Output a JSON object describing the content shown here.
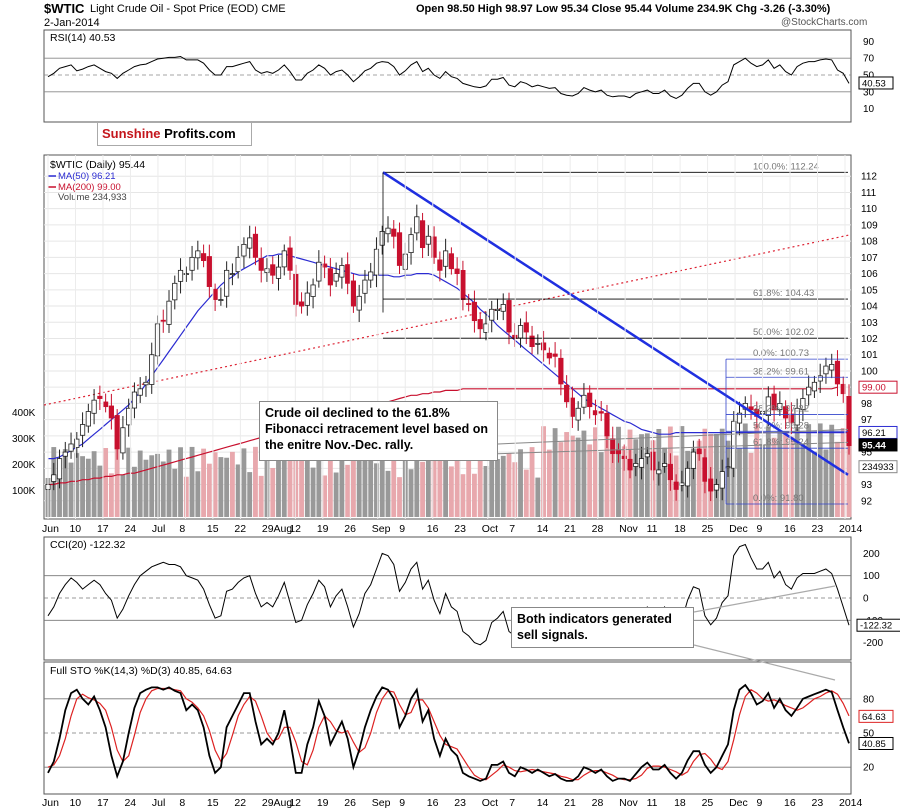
{
  "header": {
    "symbol": "$WTIC",
    "name": "Light Crude Oil - Spot Price (EOD)",
    "exchange": "CME",
    "date": "2-Jan-2014",
    "ohlc": "Open 98.50  High 98.97  Low 95.34  Close 95.44  Volume 234.9K  Chg -3.26 (-3.30%)",
    "copyright": "@StockCharts.com"
  },
  "logo": {
    "part1": "Sunshine",
    "part2": "Profits.com"
  },
  "annotations": {
    "main_note": "Crude oil declined to the 61.8% Fibonacci retracement level based on the enitre Nov.-Dec. rally.",
    "indicator_note": "Both indicators generated sell signals."
  },
  "colors": {
    "up": "#222222",
    "down": "#c8102e",
    "ma50": "#2b2bd1",
    "ma200": "#c8102e",
    "trend_blue": "#1f2fe0",
    "volume_up": "#999999",
    "volume_down": "#e8a8ad",
    "cci_pos": "#4f7a4f",
    "cci_neg": "#8a5a5a",
    "rsi_fill": "#4f7a4f"
  },
  "chart_data": {
    "type": "candlestick",
    "x_labels": [
      "Jun",
      "10",
      "17",
      "24",
      "Jul",
      "8",
      "15",
      "22",
      "29Aug",
      "12",
      "19",
      "26",
      "Sep",
      "9",
      "16",
      "23",
      "Oct",
      "7",
      "14",
      "21",
      "28",
      "Nov",
      "11",
      "18",
      "25",
      "Dec",
      "9",
      "16",
      "23",
      "2014"
    ],
    "main_panel": {
      "title": "$WTIC (Daily) 95.44",
      "legend": [
        "MA(50) 96.21",
        "MA(200) 99.00",
        "Volume 234,933"
      ],
      "ylim": [
        91,
        113
      ],
      "y_ticks": [
        92,
        93,
        94,
        95,
        96,
        97,
        98,
        99,
        100,
        101,
        102,
        103,
        104,
        105,
        106,
        107,
        108,
        109,
        110,
        111,
        112
      ],
      "volume_ticks": [
        "100K",
        "200K",
        "300K",
        "400K"
      ],
      "closes": [
        93.0,
        93.6,
        94.6,
        95.0,
        95.5,
        95.8,
        96.7,
        97.5,
        98.2,
        98.3,
        97.8,
        97.1,
        95.2,
        96.5,
        97.7,
        98.7,
        98.9,
        99.3,
        101.0,
        102.9,
        103.1,
        104.3,
        105.4,
        106.2,
        106.0,
        107.0,
        107.4,
        106.8,
        105.2,
        104.4,
        104.4,
        106.2,
        106.0,
        107.0,
        107.8,
        108.2,
        107.0,
        106.2,
        106.3,
        105.9,
        106.4,
        107.4,
        106.2,
        104.1,
        104.0,
        104.8,
        105.3,
        106.7,
        106.4,
        105.3,
        106.0,
        106.5,
        105.4,
        104.0,
        104.6,
        105.6,
        106.1,
        107.5,
        108.6,
        108.8,
        108.3,
        106.5,
        107.2,
        108.4,
        109.5,
        107.6,
        108.3,
        107.0,
        106.2,
        107.4,
        106.3,
        106.0,
        104.4,
        104.1,
        103.1,
        102.6,
        102.9,
        103.8,
        103.8,
        104.1,
        102.4,
        102.0,
        102.8,
        102.4,
        101.5,
        101.7,
        101.3,
        100.8,
        100.9,
        99.2,
        98.1,
        97.2,
        97.7,
        98.5,
        97.8,
        97.3,
        97.4,
        96.0,
        94.9,
        94.9,
        94.6,
        93.9,
        94.3,
        94.6,
        94.9,
        93.9,
        93.9,
        94.3,
        93.3,
        92.7,
        93.1,
        94.0,
        95.0,
        94.9,
        93.2,
        92.6,
        93.0,
        93.8,
        94.1,
        96.9,
        97.4,
        98.0,
        97.6,
        97.2,
        97.5,
        98.4,
        97.6,
        98.0,
        97.1,
        96.8,
        97.7,
        98.3,
        99.0,
        99.3,
        99.7,
        100.3,
        100.4,
        99.2,
        98.6,
        95.4
      ],
      "ma50": [
        94.6,
        94.6,
        94.7,
        94.9,
        95.1,
        95.3,
        95.5,
        95.8,
        96.1,
        96.4,
        96.7,
        97.0,
        97.3,
        97.6,
        97.9,
        98.3,
        98.7,
        99.2,
        99.7,
        100.2,
        100.7,
        101.2,
        101.7,
        102.2,
        102.7,
        103.2,
        103.7,
        104.1,
        104.5,
        104.9,
        105.3,
        105.6,
        105.8,
        106.1,
        106.3,
        106.5,
        106.7,
        106.9,
        107.1,
        107.1,
        107.2,
        107.2,
        107.1,
        107.0,
        106.9,
        106.8,
        106.7,
        106.6,
        106.5,
        106.4,
        106.3,
        106.2,
        106.1,
        106.0,
        105.9,
        105.9,
        105.9,
        105.9,
        105.9,
        105.9,
        105.8,
        105.8,
        105.9,
        105.9,
        106.0,
        106.0,
        106.0,
        105.9,
        105.7,
        105.5,
        105.3,
        105.1,
        104.8,
        104.5,
        104.2,
        103.8,
        103.5,
        103.2,
        102.8,
        102.5,
        102.2,
        101.9,
        101.6,
        101.3,
        101.0,
        100.7,
        100.4,
        100.1,
        99.8,
        99.5,
        99.2,
        98.9,
        98.6,
        98.3,
        98.1,
        97.9,
        97.7,
        97.5,
        97.3,
        97.1,
        96.9,
        96.8,
        96.6,
        96.4,
        96.3,
        96.2,
        96.1,
        96.1,
        96.1,
        96.2,
        96.2,
        96.2,
        96.2,
        96.2,
        96.2,
        96.2,
        96.2,
        96.2,
        96.2,
        96.2,
        96.2,
        96.2,
        96.2,
        96.2,
        96.2,
        96.2,
        96.2,
        96.2,
        96.2,
        96.2,
        96.2,
        96.2,
        96.2,
        96.2,
        96.2,
        96.2,
        96.2,
        96.2,
        96.2,
        96.2
      ],
      "ma200": [
        93.0,
        93.0,
        93.1,
        93.1,
        93.2,
        93.2,
        93.3,
        93.3,
        93.4,
        93.4,
        93.5,
        93.5,
        93.6,
        93.6,
        93.7,
        93.7,
        93.8,
        93.9,
        94.0,
        94.1,
        94.2,
        94.3,
        94.4,
        94.5,
        94.6,
        94.7,
        94.8,
        94.9,
        95.0,
        95.1,
        95.2,
        95.3,
        95.4,
        95.5,
        95.6,
        95.7,
        95.8,
        95.9,
        96.0,
        96.1,
        96.2,
        96.3,
        96.4,
        96.5,
        96.6,
        96.7,
        96.8,
        96.9,
        97.0,
        97.1,
        97.2,
        97.3,
        97.4,
        97.5,
        97.6,
        97.7,
        97.8,
        97.9,
        98.0,
        98.1,
        98.2,
        98.3,
        98.4,
        98.5,
        98.5,
        98.6,
        98.6,
        98.7,
        98.7,
        98.8,
        98.8,
        98.8,
        98.9,
        98.9,
        98.9,
        98.9,
        98.9,
        98.9,
        98.9,
        98.9,
        98.9,
        98.9,
        98.9,
        98.9,
        98.9,
        98.9,
        98.9,
        98.9,
        98.9,
        98.9,
        98.9,
        98.9,
        98.9,
        98.9,
        98.9,
        98.9,
        98.9,
        98.9,
        98.9,
        98.9,
        98.9,
        98.9,
        98.9,
        98.9,
        98.9,
        98.9,
        98.9,
        98.9,
        98.9,
        98.9,
        98.9,
        98.9,
        98.9,
        98.9,
        98.9,
        98.9,
        98.9,
        98.9,
        98.9,
        98.9,
        98.9,
        98.9,
        98.9,
        98.9,
        98.9,
        98.9,
        98.9,
        98.9,
        98.9,
        98.9,
        98.9,
        98.9,
        98.9,
        98.9,
        98.9,
        98.9,
        98.9,
        99.0
      ],
      "fib_levels": [
        {
          "label": "100.0%: 112.24",
          "value": 112.24
        },
        {
          "label": "61.8%: 104.43",
          "value": 104.43
        },
        {
          "label": "50.0%: 102.02",
          "value": 102.02
        },
        {
          "label": "0.0%: 100.73",
          "value": 100.73
        },
        {
          "label": "38.2%: 99.61",
          "value": 99.61
        },
        {
          "label": "50.0%: 96.28",
          "value": 96.28
        },
        {
          "label": "38.2%: 97.32",
          "value": 97.32
        },
        {
          "label": "61.8%: 95.24",
          "value": 95.24
        },
        {
          "label": "0.0%: 91.80",
          "value": 91.8
        }
      ],
      "price_tags": [
        "99.00",
        "96.21",
        "95.44",
        "234933"
      ]
    },
    "rsi": {
      "title": "RSI(14) 40.53",
      "ylim": [
        0,
        100
      ],
      "ticks": [
        "10",
        "30",
        "50",
        "70",
        "90"
      ],
      "last_label": "40.53",
      "values": [
        48,
        52,
        58,
        60,
        62,
        55,
        57,
        60,
        62,
        58,
        54,
        52,
        46,
        52,
        56,
        60,
        62,
        63,
        66,
        69,
        70,
        71,
        71,
        72,
        68,
        68,
        68,
        64,
        56,
        50,
        50,
        60,
        60,
        62,
        64,
        66,
        56,
        52,
        54,
        52,
        56,
        62,
        54,
        44,
        44,
        52,
        56,
        62,
        58,
        50,
        54,
        56,
        50,
        42,
        48,
        55,
        58,
        64,
        66,
        65,
        60,
        50,
        55,
        62,
        66,
        54,
        58,
        50,
        46,
        54,
        48,
        46,
        40,
        38,
        36,
        35,
        37,
        45,
        45,
        47,
        38,
        36,
        42,
        40,
        36,
        38,
        36,
        34,
        35,
        28,
        26,
        25,
        28,
        35,
        32,
        30,
        32,
        26,
        24,
        25,
        25,
        23,
        28,
        30,
        32,
        28,
        28,
        32,
        25,
        22,
        26,
        34,
        40,
        40,
        30,
        26,
        30,
        38,
        42,
        62,
        66,
        70,
        64,
        60,
        62,
        68,
        58,
        62,
        54,
        50,
        60,
        64,
        66,
        66,
        68,
        69,
        68,
        56,
        52,
        40
      ]
    },
    "cci": {
      "title": "CCI(20) -122.32",
      "ylim": [
        -260,
        260
      ],
      "ticks": [
        "200",
        "100",
        "0",
        "-100",
        "-200"
      ],
      "last_label": "-122.32",
      "values": [
        -80,
        -40,
        20,
        60,
        90,
        70,
        40,
        60,
        80,
        60,
        20,
        -10,
        -90,
        -50,
        10,
        60,
        100,
        120,
        140,
        150,
        160,
        150,
        150,
        140,
        100,
        90,
        80,
        40,
        -30,
        -90,
        -80,
        30,
        40,
        70,
        90,
        100,
        20,
        -40,
        -20,
        -40,
        10,
        70,
        -20,
        -110,
        -100,
        -30,
        20,
        80,
        50,
        -40,
        10,
        40,
        -40,
        -130,
        -70,
        20,
        60,
        130,
        200,
        190,
        150,
        30,
        70,
        130,
        160,
        40,
        80,
        -10,
        -70,
        20,
        -40,
        -60,
        -150,
        -170,
        -200,
        -210,
        -190,
        -110,
        -90,
        -60,
        -150,
        -170,
        -100,
        -110,
        -140,
        -120,
        -130,
        -140,
        -130,
        -190,
        -220,
        -220,
        -170,
        -100,
        -120,
        -130,
        -110,
        -150,
        -170,
        -150,
        -130,
        -140,
        -100,
        -70,
        -40,
        -80,
        -70,
        -40,
        -100,
        -130,
        -100,
        -10,
        50,
        40,
        -80,
        -120,
        -90,
        -20,
        10,
        190,
        230,
        240,
        180,
        130,
        130,
        160,
        90,
        120,
        60,
        40,
        90,
        110,
        110,
        110,
        120,
        130,
        110,
        40,
        -40,
        -122
      ]
    },
    "stoch": {
      "title": "Full STO %K(14,3) %D(3) 40.85, 64.63",
      "ylim": [
        0,
        100
      ],
      "ticks": [
        "20",
        "50",
        "80"
      ],
      "last_labels": [
        "64.63",
        "40.85"
      ],
      "k": [
        15,
        25,
        45,
        70,
        85,
        88,
        80,
        75,
        82,
        70,
        55,
        30,
        12,
        25,
        50,
        72,
        85,
        88,
        90,
        90,
        88,
        90,
        87,
        85,
        70,
        75,
        70,
        55,
        30,
        15,
        20,
        55,
        65,
        75,
        85,
        85,
        60,
        40,
        45,
        40,
        50,
        70,
        45,
        15,
        15,
        40,
        55,
        78,
        65,
        40,
        50,
        60,
        45,
        20,
        35,
        55,
        70,
        82,
        90,
        88,
        80,
        55,
        65,
        80,
        88,
        60,
        70,
        45,
        30,
        45,
        35,
        30,
        15,
        12,
        10,
        8,
        10,
        22,
        22,
        25,
        15,
        12,
        20,
        18,
        15,
        18,
        15,
        12,
        14,
        10,
        8,
        8,
        12,
        20,
        18,
        15,
        18,
        12,
        8,
        10,
        10,
        8,
        14,
        20,
        24,
        18,
        18,
        22,
        15,
        10,
        15,
        26,
        34,
        34,
        22,
        15,
        20,
        30,
        40,
        70,
        88,
        92,
        85,
        75,
        78,
        85,
        72,
        80,
        70,
        65,
        72,
        80,
        82,
        84,
        86,
        88,
        86,
        70,
        55,
        41
      ],
      "d": [
        20,
        22,
        30,
        45,
        65,
        80,
        84,
        81,
        79,
        76,
        70,
        55,
        35,
        25,
        30,
        48,
        68,
        80,
        87,
        89,
        89,
        89,
        88,
        87,
        80,
        77,
        72,
        65,
        52,
        35,
        25,
        32,
        48,
        65,
        75,
        82,
        78,
        65,
        50,
        43,
        45,
        55,
        55,
        42,
        25,
        22,
        35,
        55,
        65,
        60,
        52,
        50,
        52,
        42,
        33,
        37,
        50,
        68,
        80,
        87,
        86,
        75,
        66,
        68,
        79,
        79,
        72,
        60,
        48,
        40,
        38,
        36,
        28,
        20,
        13,
        10,
        9,
        13,
        17,
        22,
        20,
        17,
        16,
        17,
        18,
        17,
        16,
        15,
        14,
        12,
        11,
        9,
        9,
        13,
        16,
        17,
        17,
        15,
        13,
        10,
        9,
        9,
        10,
        13,
        19,
        21,
        21,
        20,
        18,
        16,
        13,
        16,
        25,
        31,
        32,
        27,
        20,
        18,
        25,
        44,
        66,
        82,
        88,
        85,
        80,
        78,
        79,
        77,
        74,
        72,
        70,
        72,
        76,
        80,
        82,
        85,
        87,
        84,
        76,
        65
      ]
    }
  }
}
